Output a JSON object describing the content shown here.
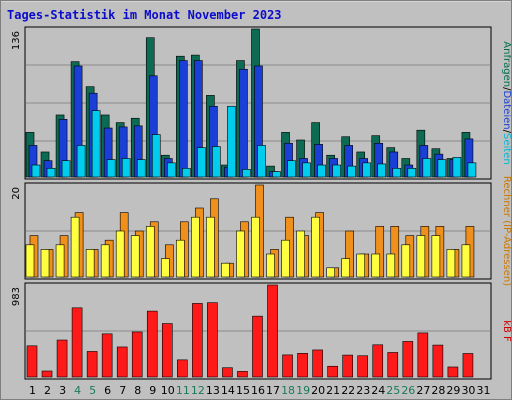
{
  "title": "Tages-Statistik im Monat November 2023",
  "chart_data": [
    {
      "type": "bar",
      "panel": "top",
      "y_tick_label": "136",
      "ylim": [
        0,
        136
      ],
      "right_label": {
        "parts": [
          {
            "text": "Anfragen",
            "color": "#006f4f"
          },
          {
            "text": "/",
            "color": "#000000"
          },
          {
            "text": "Dateien",
            "color": "#1a3fd6"
          },
          {
            "text": "/",
            "color": "#000000"
          },
          {
            "text": "Seiten",
            "color": "#00b7d8"
          }
        ]
      },
      "categories": [
        "1",
        "2",
        "3",
        "4",
        "5",
        "6",
        "7",
        "8",
        "9",
        "10",
        "11",
        "12",
        "13",
        "14",
        "15",
        "16",
        "17",
        "18",
        "19",
        "20",
        "21",
        "22",
        "23",
        "24",
        "25",
        "26",
        "27",
        "28",
        "29",
        "30",
        "31"
      ],
      "series": [
        {
          "name": "Anfragen",
          "color": "#0d6b54",
          "values": [
            41,
            23,
            57,
            106,
            83,
            57,
            50,
            54,
            128,
            20,
            111,
            112,
            75,
            11,
            107,
            136,
            10,
            41,
            34,
            50,
            20,
            37,
            23,
            38,
            27,
            17,
            43,
            26,
            17,
            41,
            0
          ]
        },
        {
          "name": "Dateien",
          "color": "#1a3fd6",
          "values": [
            29,
            15,
            53,
            102,
            77,
            45,
            46,
            47,
            93,
            17,
            107,
            107,
            65,
            9,
            99,
            102,
            5,
            31,
            17,
            30,
            17,
            29,
            17,
            31,
            23,
            11,
            29,
            21,
            16,
            35,
            0
          ]
        },
        {
          "name": "Seiten",
          "color": "#00ccee",
          "values": [
            11,
            8,
            15,
            29,
            61,
            16,
            17,
            16,
            39,
            13,
            8,
            27,
            28,
            65,
            7,
            29,
            5,
            15,
            13,
            11,
            11,
            10,
            13,
            12,
            8,
            8,
            17,
            16,
            18,
            13,
            0
          ]
        }
      ]
    },
    {
      "type": "bar",
      "panel": "middle",
      "y_tick_label": "20",
      "ylim": [
        0,
        20
      ],
      "right_label": {
        "parts": [
          {
            "text": "Rechner (IP-Adressen)",
            "color": "#cc7700"
          }
        ]
      },
      "categories": [
        "1",
        "2",
        "3",
        "4",
        "5",
        "6",
        "7",
        "8",
        "9",
        "10",
        "11",
        "12",
        "13",
        "14",
        "15",
        "16",
        "17",
        "18",
        "19",
        "20",
        "21",
        "22",
        "23",
        "24",
        "25",
        "26",
        "27",
        "28",
        "29",
        "30",
        "31"
      ],
      "series": [
        {
          "name": "Rechner",
          "color": "#f0901c",
          "values": [
            9,
            6,
            9,
            14,
            6,
            8,
            14,
            10,
            12,
            7,
            12,
            15,
            17,
            3,
            12,
            20,
            6,
            13,
            9,
            14,
            2,
            10,
            5,
            11,
            11,
            9,
            11,
            11,
            6,
            11,
            0
          ]
        },
        {
          "name": "Besuche",
          "color": "#ffff40",
          "values": [
            7,
            6,
            7,
            13,
            6,
            7,
            10,
            9,
            11,
            4,
            8,
            13,
            13,
            3,
            10,
            13,
            5,
            8,
            10,
            13,
            2,
            4,
            5,
            5,
            5,
            7,
            9,
            9,
            6,
            7,
            0
          ]
        }
      ]
    },
    {
      "type": "bar",
      "panel": "bottom",
      "y_tick_label": "983",
      "ylim": [
        0,
        983
      ],
      "right_label": {
        "parts": [
          {
            "text": "kB F",
            "color": "#cc0000"
          }
        ]
      },
      "categories": [
        "1",
        "2",
        "3",
        "4",
        "5",
        "6",
        "7",
        "8",
        "9",
        "10",
        "11",
        "12",
        "13",
        "14",
        "15",
        "16",
        "17",
        "18",
        "19",
        "20",
        "21",
        "22",
        "23",
        "24",
        "25",
        "26",
        "27",
        "28",
        "29",
        "30",
        "31"
      ],
      "series": [
        {
          "name": "kB F",
          "color": "#ff1a1a",
          "values": [
            333,
            64,
            395,
            739,
            273,
            461,
            321,
            481,
            704,
            571,
            183,
            786,
            794,
            99,
            60,
            650,
            983,
            236,
            253,
            289,
            115,
            234,
            227,
            344,
            262,
            380,
            471,
            341,
            107,
            251,
            0
          ]
        }
      ]
    }
  ],
  "x_label_colors": {
    "weekday": "#000000",
    "weekend": "#1a7a5a"
  },
  "weekend_days": [
    "4",
    "5",
    "11",
    "12",
    "18",
    "19",
    "25",
    "26"
  ]
}
